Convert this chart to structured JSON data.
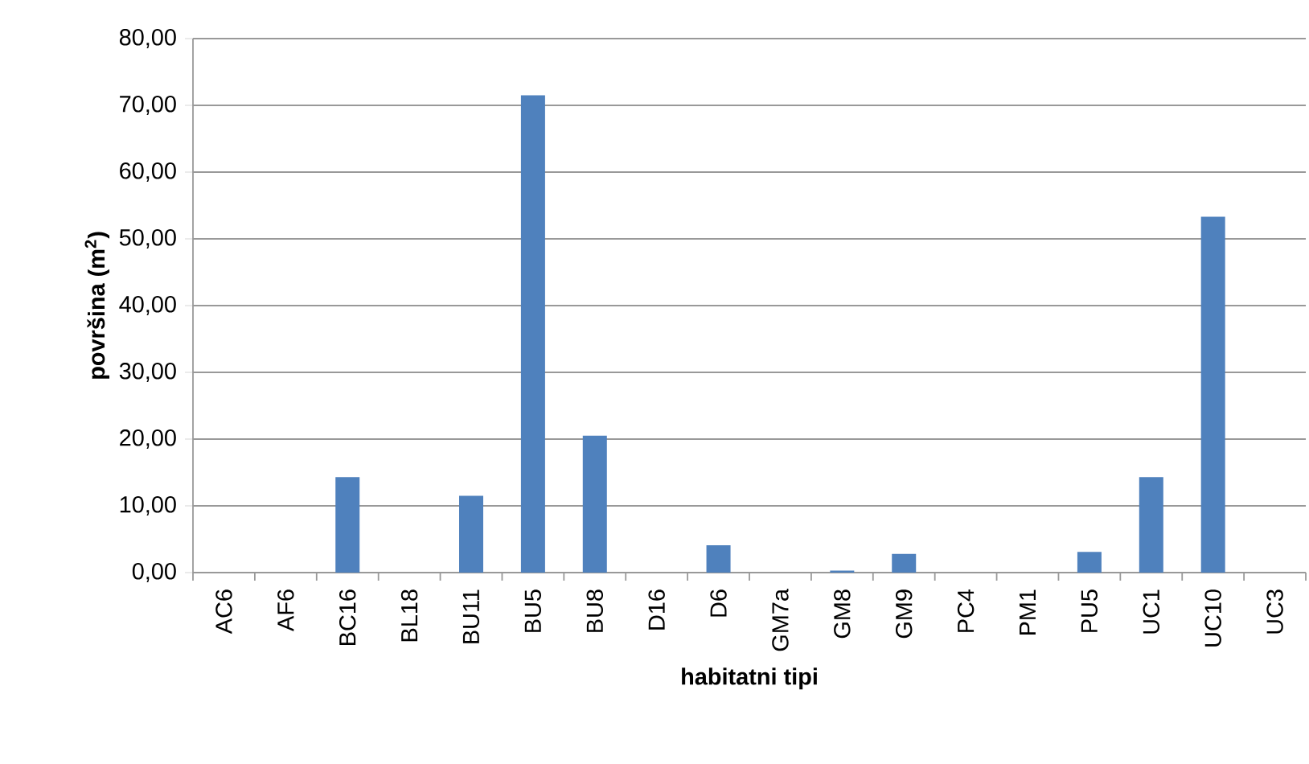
{
  "chart_data": {
    "type": "bar",
    "xlabel": "habitatni tipi",
    "ylabel": "površina (m$^{2}$)",
    "categories": [
      "AC6",
      "AF6",
      "BC16",
      "BL18",
      "BU11",
      "BU5",
      "BU8",
      "D16",
      "D6",
      "GM7a",
      "GM8",
      "GM9",
      "PC4",
      "PM1",
      "PU5",
      "UC1",
      "UC10",
      "UC3"
    ],
    "values": [
      0,
      0,
      14.3,
      0,
      11.5,
      71.5,
      20.5,
      0,
      4.1,
      0,
      0.3,
      2.8,
      0,
      0,
      3.1,
      14.3,
      53.3,
      0
    ],
    "color": "#4f81bd",
    "ylim": [
      0,
      80
    ],
    "yticks": [
      {
        "value": 0,
        "label": "0,00"
      },
      {
        "value": 10,
        "label": "10,00"
      },
      {
        "value": 20,
        "label": "20,00"
      },
      {
        "value": 30,
        "label": "30,00"
      },
      {
        "value": 40,
        "label": "40,00"
      },
      {
        "value": 50,
        "label": "50,00"
      },
      {
        "value": 60,
        "label": "60,00"
      },
      {
        "value": 70,
        "label": "70,00"
      },
      {
        "value": 80,
        "label": "80,00"
      }
    ],
    "grid": "y"
  }
}
